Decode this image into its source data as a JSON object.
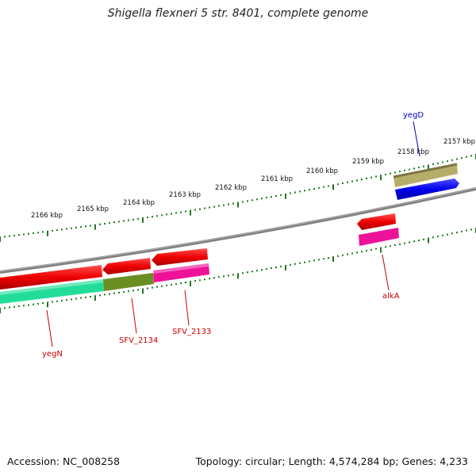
{
  "title": "Shigella flexneri 5 str. 8401, complete genome",
  "footer": {
    "accession": "Accession: NC_008258",
    "summary": "Topology: circular; Length: 4,574,284 bp; Genes: 4,233"
  },
  "colors": {
    "backbone": "#808080",
    "ticks": "#1f7a1f",
    "label_forward": "#0000cc",
    "label_reverse": "#cc0000"
  },
  "scale_labels": [
    "2166 kbp",
    "2165 kbp",
    "2164 kbp",
    "2163 kbp",
    "2162 kbp",
    "2161 kbp",
    "2160 kbp",
    "2159 kbp",
    "2158 kbp",
    "2157 kbp"
  ],
  "genes": [
    {
      "name": "yegD",
      "label_color": "#0000cc",
      "feature_colors": [
        "#0000ee",
        "#b5ad6a"
      ]
    },
    {
      "name": "yegN",
      "label_color": "#cc0000",
      "feature_colors": [
        "#ee0000",
        "#22dd99"
      ]
    },
    {
      "name": "SFV_2134",
      "label_color": "#cc0000",
      "feature_colors": [
        "#ee0000",
        "#6b8e23"
      ]
    },
    {
      "name": "SFV_2133",
      "label_color": "#cc0000",
      "feature_colors": [
        "#ee0000",
        "#ee1199"
      ]
    },
    {
      "name": "alkA",
      "label_color": "#cc0000",
      "feature_colors": [
        "#ee0000",
        "#ee1199"
      ]
    }
  ]
}
